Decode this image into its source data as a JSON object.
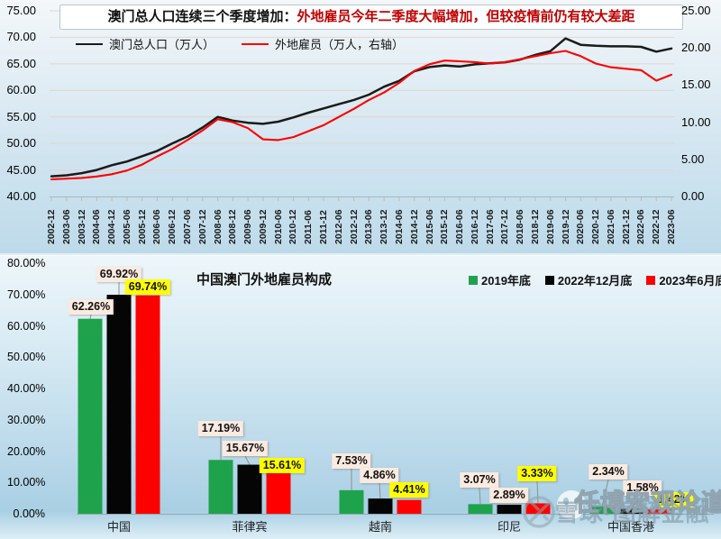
{
  "chart_data": [
    {
      "type": "line",
      "title_part1": "澳门总人口连续三个季度增加：",
      "title_part2": "外地雇员今年二季度大幅增加，但较疫情前仍有较大差距",
      "title_emphasis_color": "#C00000",
      "x": [
        "2002-12",
        "2003-06",
        "2003-12",
        "2004-06",
        "2004-12",
        "2005-06",
        "2005-12",
        "2006-06",
        "2006-12",
        "2007-06",
        "2007-12",
        "2008-06",
        "2008-12",
        "2009-06",
        "2009-12",
        "2010-06",
        "2010-12",
        "2011-06",
        "2011-12",
        "2012-06",
        "2012-12",
        "2013-06",
        "2013-12",
        "2014-06",
        "2014-12",
        "2015-06",
        "2015-12",
        "2016-06",
        "2016-12",
        "2017-06",
        "2017-12",
        "2018-06",
        "2018-12",
        "2019-06",
        "2019-12",
        "2020-06",
        "2020-12",
        "2021-06",
        "2021-12",
        "2022-06",
        "2022-12",
        "2023-06"
      ],
      "series": [
        {
          "name": "澳门总人口（万人）",
          "axis": "left",
          "color": "#1A1A1A",
          "values": [
            43.8,
            44.0,
            44.4,
            45.0,
            45.9,
            46.6,
            47.6,
            48.6,
            50.0,
            51.3,
            53.0,
            55.0,
            54.3,
            53.9,
            53.7,
            54.1,
            54.9,
            55.8,
            56.6,
            57.4,
            58.2,
            59.2,
            60.7,
            61.8,
            63.6,
            64.4,
            64.7,
            64.5,
            64.9,
            65.1,
            65.3,
            65.8,
            66.7,
            67.4,
            69.8,
            68.6,
            68.4,
            68.3,
            68.3,
            68.2,
            67.3,
            67.9
          ]
        },
        {
          "name": "外地雇员（万人，右轴）",
          "axis": "right",
          "color": "#FF0000",
          "values": [
            2.3,
            2.4,
            2.5,
            2.7,
            3.0,
            3.5,
            4.3,
            5.4,
            6.4,
            7.6,
            8.9,
            10.4,
            10.0,
            9.2,
            7.7,
            7.6,
            8.0,
            8.8,
            9.6,
            10.7,
            11.8,
            13.0,
            14.0,
            15.3,
            16.9,
            17.8,
            18.3,
            18.2,
            18.1,
            17.9,
            18.1,
            18.5,
            18.9,
            19.3,
            19.6,
            18.9,
            17.9,
            17.4,
            17.2,
            17.0,
            15.6,
            16.4
          ]
        }
      ],
      "left_axis": {
        "range": [
          40,
          75
        ],
        "ticks": [
          "75.00",
          "70.00",
          "65.00",
          "60.00",
          "55.00",
          "50.00",
          "45.00",
          "40.00"
        ]
      },
      "right_axis": {
        "range": [
          0,
          25
        ],
        "ticks": [
          "25.00",
          "20.00",
          "15.00",
          "10.00",
          "5.00",
          "0.00"
        ]
      },
      "grid": true,
      "legend_position": "top-left"
    },
    {
      "type": "bar",
      "title": "中国澳门外地雇员构成",
      "categories": [
        "中国",
        "菲律宾",
        "越南",
        "印尼",
        "中国香港"
      ],
      "series": [
        {
          "name": "2019年底",
          "color": "#1FA24C",
          "values": [
            62.26,
            17.19,
            7.53,
            3.07,
            2.34
          ]
        },
        {
          "name": "2022年12月底",
          "color": "#050505",
          "values": [
            69.92,
            15.67,
            4.86,
            2.89,
            1.58
          ]
        },
        {
          "name": "2023年6月底",
          "color": "#FF0000",
          "values": [
            69.74,
            15.61,
            4.41,
            3.33,
            1.42
          ]
        }
      ],
      "value_suffix": "%",
      "y_axis": {
        "range": [
          0,
          80
        ],
        "ticks": [
          "80.00%",
          "70.00%",
          "60.00%",
          "50.00%",
          "40.00%",
          "30.00%",
          "20.00%",
          "10.00%",
          "0.00%"
        ]
      },
      "label_colors": {
        "default_bg": "#FBEADF",
        "highlight_bg": "#FFFF00"
      },
      "highlight_series_index": 2,
      "legend_position": "top-right",
      "grid": false
    }
  ],
  "watermark": {
    "brand_text": "雪球·图解金融",
    "overlay_text": "任博宏观论道",
    "icons": [
      "snowball-logo-icon",
      "wechat-icon"
    ]
  }
}
